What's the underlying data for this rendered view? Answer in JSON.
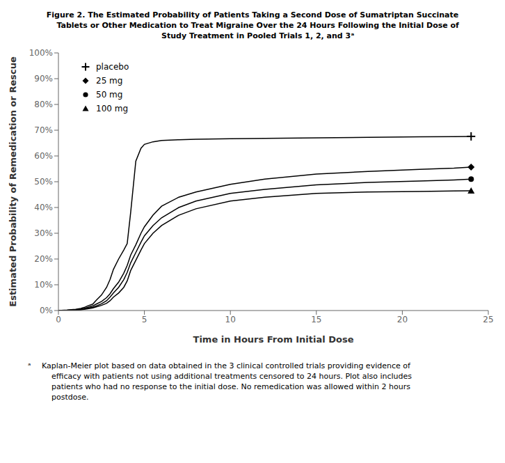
{
  "chart_data": {
    "type": "line",
    "title": "Figure 2. The Estimated Probability of Patients Taking a Second Dose of Sumatriptan Succinate\n    Tablets or Other Medication to Treat Migraine Over the 24 Hours Following the Initial Dose of\n    Study Treatment in Pooled Trials 1, 2, and 3ᵃ",
    "x_label": "Time in Hours From Initial Dose",
    "y_label": "Estimated Probability of Remedication or Rescue",
    "annotations": [
      "ᵃ",
      "Kaplan-Meier plot based on data obtained in the 3 clinical controlled trials providing evidence of\n    efficacy with patients not using additional treatments censored to 24 hours. Plot also includes\n    patients who had no response to the initial dose. No remedication was allowed within 2 hours\n    postdose."
    ],
    "x": [
      0,
      0.5,
      1.0,
      1.3,
      1.5,
      1.7,
      2.0,
      2.2,
      2.5,
      2.8,
      3.0,
      3.2,
      3.5,
      3.8,
      4.0,
      4.2,
      4.5,
      4.8,
      5.0,
      5.5,
      6.0,
      7.0,
      8.0,
      10.0,
      12.0,
      15.0,
      18.0,
      21.0,
      23.0,
      24.0
    ],
    "series": [
      {
        "name": "placebo",
        "color": "#000000",
        "marker": "plus",
        "values": [
          0,
          0.002,
          0.005,
          0.008,
          0.012,
          0.018,
          0.025,
          0.04,
          0.06,
          0.09,
          0.12,
          0.16,
          0.2,
          0.235,
          0.26,
          0.38,
          0.58,
          0.63,
          0.645,
          0.655,
          0.66,
          0.663,
          0.665,
          0.667,
          0.668,
          0.67,
          0.672,
          0.674,
          0.675,
          0.676
        ]
      },
      {
        "name": "25 mg",
        "color": "#000000",
        "marker": "diamond",
        "values": [
          0,
          0.001,
          0.003,
          0.005,
          0.008,
          0.012,
          0.018,
          0.025,
          0.035,
          0.05,
          0.065,
          0.085,
          0.11,
          0.145,
          0.175,
          0.215,
          0.255,
          0.3,
          0.325,
          0.37,
          0.405,
          0.44,
          0.46,
          0.49,
          0.51,
          0.53,
          0.54,
          0.548,
          0.553,
          0.557
        ]
      },
      {
        "name": "50 mg",
        "color": "#000000",
        "marker": "circle",
        "values": [
          0,
          0.001,
          0.002,
          0.004,
          0.006,
          0.009,
          0.013,
          0.018,
          0.026,
          0.038,
          0.052,
          0.068,
          0.09,
          0.12,
          0.148,
          0.185,
          0.225,
          0.265,
          0.29,
          0.33,
          0.36,
          0.4,
          0.425,
          0.455,
          0.47,
          0.488,
          0.497,
          0.503,
          0.507,
          0.51
        ]
      },
      {
        "name": "100 mg",
        "color": "#000000",
        "marker": "triangle",
        "values": [
          0,
          0.001,
          0.002,
          0.003,
          0.005,
          0.007,
          0.01,
          0.014,
          0.02,
          0.028,
          0.038,
          0.052,
          0.068,
          0.09,
          0.115,
          0.155,
          0.195,
          0.235,
          0.26,
          0.3,
          0.33,
          0.37,
          0.395,
          0.425,
          0.44,
          0.455,
          0.46,
          0.462,
          0.464,
          0.465
        ]
      }
    ],
    "xlim": [
      0,
      25
    ],
    "ylim": [
      0,
      1.0
    ],
    "xticks": [
      0,
      5,
      10,
      15,
      20,
      25
    ],
    "yticks": [
      {
        "value": 0.0,
        "label": "0%"
      },
      {
        "value": 0.1,
        "label": "10%"
      },
      {
        "value": 0.2,
        "label": "20%"
      },
      {
        "value": 0.3,
        "label": "30%"
      },
      {
        "value": 0.4,
        "label": "40%"
      },
      {
        "value": 0.5,
        "label": "50%"
      },
      {
        "value": 0.6,
        "label": "60%"
      },
      {
        "value": 0.7,
        "label": "70%"
      },
      {
        "value": 0.8,
        "label": "80%"
      },
      {
        "value": 0.9,
        "label": "90%"
      },
      {
        "value": 1.0,
        "label": "100%"
      }
    ],
    "grid": false,
    "legend": "upper left"
  }
}
